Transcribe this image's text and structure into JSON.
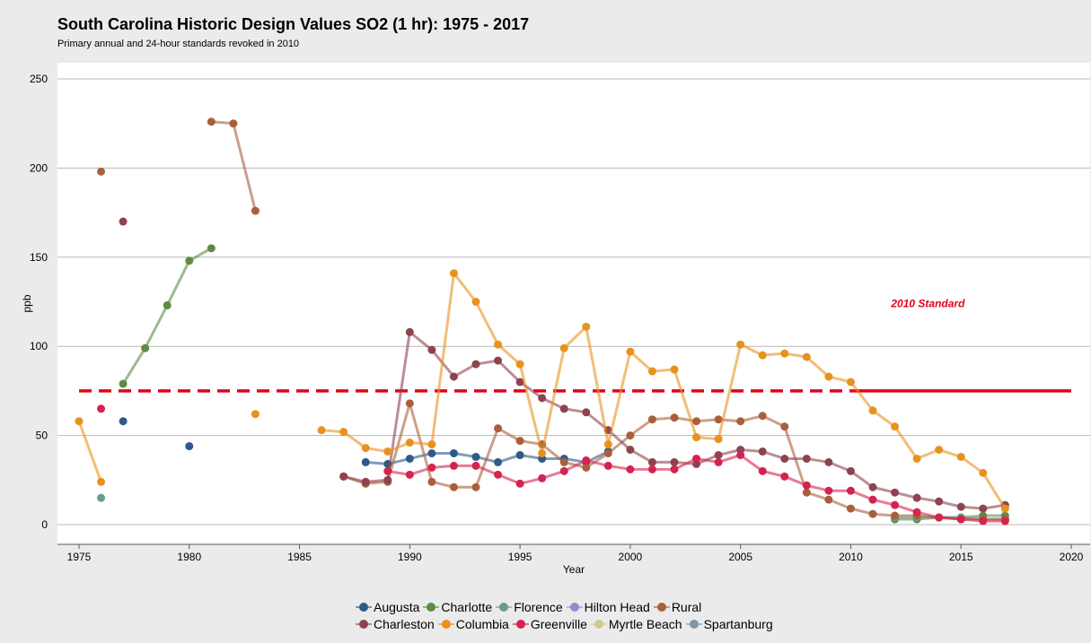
{
  "header": {
    "title": "South Carolina Historic Design Values SO2 (1 hr): 1975 - 2017",
    "subtitle": "Primary annual and 24-hour standards revoked in 2010"
  },
  "chart_data": {
    "type": "line",
    "title": "South Carolina Historic Design Values SO2 (1 hr): 1975 - 2017",
    "subtitle": "Primary annual and 24-hour standards revoked in 2010",
    "xlabel": "Year",
    "ylabel": "ppb",
    "xlim": [
      1974,
      2021
    ],
    "ylim": [
      -8,
      258
    ],
    "xticks": [
      1975,
      1980,
      1985,
      1990,
      1995,
      2000,
      2005,
      2010,
      2015,
      2020
    ],
    "yticks": [
      0,
      50,
      100,
      150,
      200,
      250
    ],
    "grid": "horizontal",
    "legend_position": "bottom",
    "standard": {
      "label": "2010 Standard",
      "value": 75,
      "dashed_from": 1975,
      "solid_from": 2010,
      "to": 2020,
      "color": "#e3001b"
    },
    "series": [
      {
        "name": "Augusta",
        "color": "#2e5a87",
        "points": [
          [
            1977,
            58
          ],
          [
            1980,
            44
          ],
          [
            1988,
            35
          ],
          [
            1989,
            34
          ],
          [
            1990,
            37
          ],
          [
            1991,
            40
          ],
          [
            1992,
            40
          ],
          [
            1993,
            38
          ],
          [
            1994,
            35
          ],
          [
            1995,
            39
          ],
          [
            1996,
            37
          ],
          [
            1997,
            37
          ],
          [
            1998,
            35
          ],
          [
            1999,
            41
          ]
        ]
      },
      {
        "name": "Charlotte",
        "color": "#5f8a45",
        "points": [
          [
            1977,
            79
          ],
          [
            1978,
            99
          ],
          [
            1979,
            123
          ],
          [
            1980,
            148
          ],
          [
            1981,
            155
          ],
          [
            2012,
            3
          ],
          [
            2013,
            3
          ],
          [
            2014,
            4
          ],
          [
            2015,
            4
          ],
          [
            2016,
            5
          ],
          [
            2017,
            5
          ]
        ]
      },
      {
        "name": "Florence",
        "color": "#6e9a8a",
        "points": [
          [
            1976,
            15
          ],
          [
            2012,
            4
          ],
          [
            2013,
            4
          ],
          [
            2014,
            4
          ],
          [
            2015,
            4
          ],
          [
            2016,
            3
          ],
          [
            2017,
            3
          ]
        ]
      },
      {
        "name": "Hilton Head",
        "color": "#9a87d0",
        "points": []
      },
      {
        "name": "Rural",
        "color": "#a8603a",
        "points": [
          [
            1976,
            198
          ],
          [
            1981,
            226
          ],
          [
            1982,
            225
          ],
          [
            1983,
            176
          ],
          [
            1987,
            27
          ],
          [
            1988,
            23
          ],
          [
            1989,
            24
          ],
          [
            1990,
            68
          ],
          [
            1991,
            24
          ],
          [
            1992,
            21
          ],
          [
            1993,
            21
          ],
          [
            1994,
            54
          ],
          [
            1995,
            47
          ],
          [
            1996,
            45
          ],
          [
            1997,
            35
          ],
          [
            1998,
            32
          ],
          [
            1999,
            40
          ],
          [
            2000,
            50
          ],
          [
            2001,
            59
          ],
          [
            2002,
            60
          ],
          [
            2003,
            58
          ],
          [
            2004,
            59
          ],
          [
            2005,
            58
          ],
          [
            2006,
            61
          ],
          [
            2007,
            55
          ],
          [
            2008,
            18
          ],
          [
            2009,
            14
          ],
          [
            2010,
            9
          ],
          [
            2011,
            6
          ],
          [
            2012,
            5
          ],
          [
            2013,
            5
          ],
          [
            2014,
            4
          ],
          [
            2015,
            3
          ],
          [
            2016,
            3
          ],
          [
            2017,
            3
          ]
        ]
      },
      {
        "name": "Charleston",
        "color": "#8e434f",
        "points": [
          [
            1977,
            170
          ],
          [
            1987,
            27
          ],
          [
            1988,
            24
          ],
          [
            1989,
            25
          ],
          [
            1990,
            108
          ],
          [
            1991,
            98
          ],
          [
            1992,
            83
          ],
          [
            1993,
            90
          ],
          [
            1994,
            92
          ],
          [
            1995,
            80
          ],
          [
            1996,
            71
          ],
          [
            1997,
            65
          ],
          [
            1998,
            63
          ],
          [
            1999,
            53
          ],
          [
            2000,
            42
          ],
          [
            2001,
            35
          ],
          [
            2002,
            35
          ],
          [
            2003,
            34
          ],
          [
            2004,
            39
          ],
          [
            2005,
            42
          ],
          [
            2006,
            41
          ],
          [
            2007,
            37
          ],
          [
            2008,
            37
          ],
          [
            2009,
            35
          ],
          [
            2010,
            30
          ],
          [
            2011,
            21
          ],
          [
            2012,
            18
          ],
          [
            2013,
            15
          ],
          [
            2014,
            13
          ],
          [
            2015,
            10
          ],
          [
            2016,
            9
          ],
          [
            2017,
            11
          ]
        ]
      },
      {
        "name": "Columbia",
        "color": "#e8921e",
        "points": [
          [
            1975,
            58
          ],
          [
            1976,
            24
          ],
          [
            1983,
            62
          ],
          [
            1986,
            53
          ],
          [
            1987,
            52
          ],
          [
            1988,
            43
          ],
          [
            1989,
            41
          ],
          [
            1990,
            46
          ],
          [
            1991,
            45
          ],
          [
            1992,
            141
          ],
          [
            1993,
            125
          ],
          [
            1994,
            101
          ],
          [
            1995,
            90
          ],
          [
            1996,
            40
          ],
          [
            1997,
            99
          ],
          [
            1998,
            111
          ],
          [
            1999,
            45
          ],
          [
            2000,
            97
          ],
          [
            2001,
            86
          ],
          [
            2002,
            87
          ],
          [
            2003,
            49
          ],
          [
            2004,
            48
          ],
          [
            2005,
            101
          ],
          [
            2006,
            95
          ],
          [
            2007,
            96
          ],
          [
            2008,
            94
          ],
          [
            2009,
            83
          ],
          [
            2010,
            80
          ],
          [
            2011,
            64
          ],
          [
            2012,
            55
          ],
          [
            2013,
            37
          ],
          [
            2014,
            42
          ],
          [
            2015,
            38
          ],
          [
            2016,
            29
          ],
          [
            2017,
            9
          ]
        ]
      },
      {
        "name": "Greenville",
        "color": "#d5234f",
        "points": [
          [
            1976,
            65
          ],
          [
            1989,
            30
          ],
          [
            1990,
            28
          ],
          [
            1991,
            32
          ],
          [
            1992,
            33
          ],
          [
            1993,
            33
          ],
          [
            1994,
            28
          ],
          [
            1995,
            23
          ],
          [
            1996,
            26
          ],
          [
            1997,
            30
          ],
          [
            1998,
            36
          ],
          [
            1999,
            33
          ],
          [
            2000,
            31
          ],
          [
            2001,
            31
          ],
          [
            2002,
            31
          ],
          [
            2003,
            37
          ],
          [
            2004,
            35
          ],
          [
            2005,
            39
          ],
          [
            2006,
            30
          ],
          [
            2007,
            27
          ],
          [
            2008,
            22
          ],
          [
            2009,
            19
          ],
          [
            2010,
            19
          ],
          [
            2011,
            14
          ],
          [
            2012,
            11
          ],
          [
            2013,
            7
          ],
          [
            2014,
            4
          ],
          [
            2015,
            3
          ],
          [
            2016,
            2
          ],
          [
            2017,
            2
          ]
        ]
      },
      {
        "name": "Myrtle Beach",
        "color": "#cfca8e",
        "points": []
      },
      {
        "name": "Spartanburg",
        "color": "#7f96ad",
        "points": []
      }
    ]
  }
}
